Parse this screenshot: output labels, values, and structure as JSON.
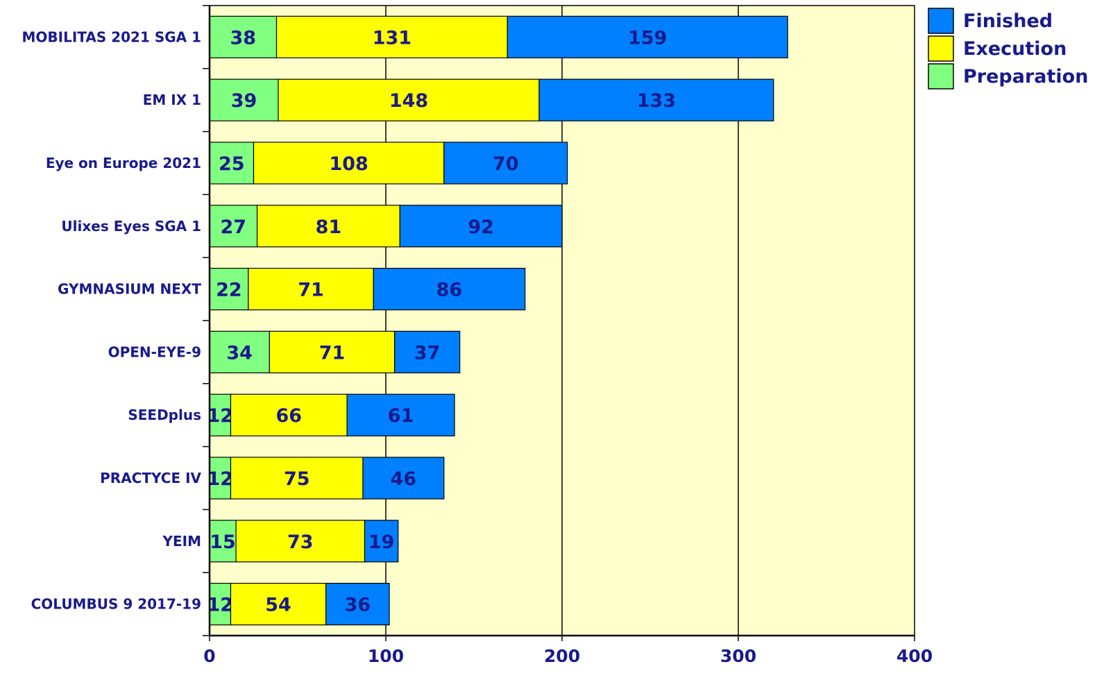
{
  "chart_data": {
    "type": "bar",
    "orientation": "horizontal",
    "stacked": true,
    "categories": [
      "MOBILITAS 2021 SGA 1",
      "EM IX 1",
      "Eye on Europe 2021",
      "Ulixes Eyes SGA 1",
      "GYMNASIUM NEXT",
      "OPEN-EYE-9",
      "SEEDplus",
      "PRACTYCE IV",
      "YEIM",
      "COLUMBUS 9 2017-19"
    ],
    "series": [
      {
        "name": "Preparation",
        "color": "#80ff80",
        "values": [
          38,
          39,
          25,
          27,
          22,
          34,
          12,
          12,
          15,
          12
        ]
      },
      {
        "name": "Execution",
        "color": "#ffff00",
        "values": [
          131,
          148,
          108,
          81,
          71,
          71,
          66,
          75,
          73,
          54
        ]
      },
      {
        "name": "Finished",
        "color": "#0080ff",
        "values": [
          159,
          133,
          70,
          92,
          86,
          37,
          61,
          46,
          19,
          36
        ]
      }
    ],
    "legend_order": [
      "Finished",
      "Execution",
      "Preparation"
    ],
    "xlim": [
      0,
      400
    ],
    "xticks": [
      "0",
      "100",
      "200",
      "300",
      "400"
    ],
    "title": "",
    "xlabel": "",
    "ylabel": "",
    "grid": "vertical",
    "legend": "top-right",
    "colors": {
      "plot_background": "#ffffcc",
      "label_text": "#1a1a8c",
      "value_text": "#1a1a8c",
      "axis": "#000000"
    }
  }
}
